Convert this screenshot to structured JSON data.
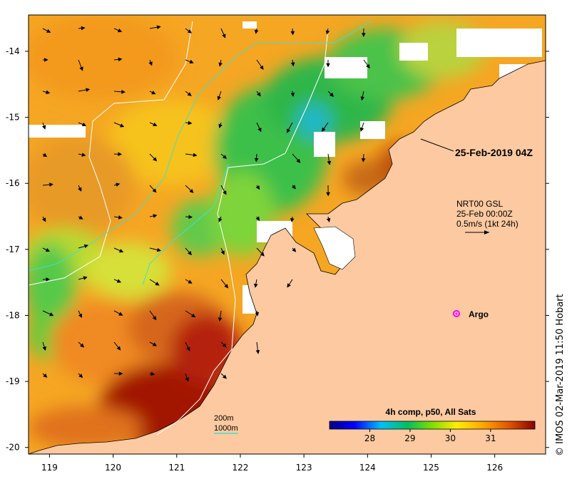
{
  "map": {
    "x_ticks": [
      "119",
      "120",
      "121",
      "122",
      "123",
      "124",
      "125",
      "126"
    ],
    "y_ticks": [
      "-14",
      "-15",
      "-16",
      "-17",
      "-18",
      "-19",
      "-20"
    ],
    "lon_range": [
      118.67,
      126.8
    ],
    "lat_range": [
      -13.45,
      -20.1
    ]
  },
  "annotations": {
    "timestamp": "25-Feb-2019 04Z",
    "current_product": "NRT00 GSL",
    "current_date": "25-Feb 00:00Z",
    "current_scale": "0.5m/s (1kt 24h)",
    "argo_label": "Argo",
    "contour_200": "200m",
    "contour_1000": "1000m"
  },
  "colorbar": {
    "title": "4h comp, p50, All Sats",
    "ticks": [
      "28",
      "29",
      "30",
      "31"
    ],
    "range": [
      27.0,
      32.1
    ]
  },
  "credit": "© IMOS 02-Mar-2019 11:50 Hobart",
  "colors": {
    "land": "#fcc9a0",
    "contour_200": "#ffffff",
    "contour_1000": "#40e0d0",
    "argo": "#ff00ff"
  }
}
